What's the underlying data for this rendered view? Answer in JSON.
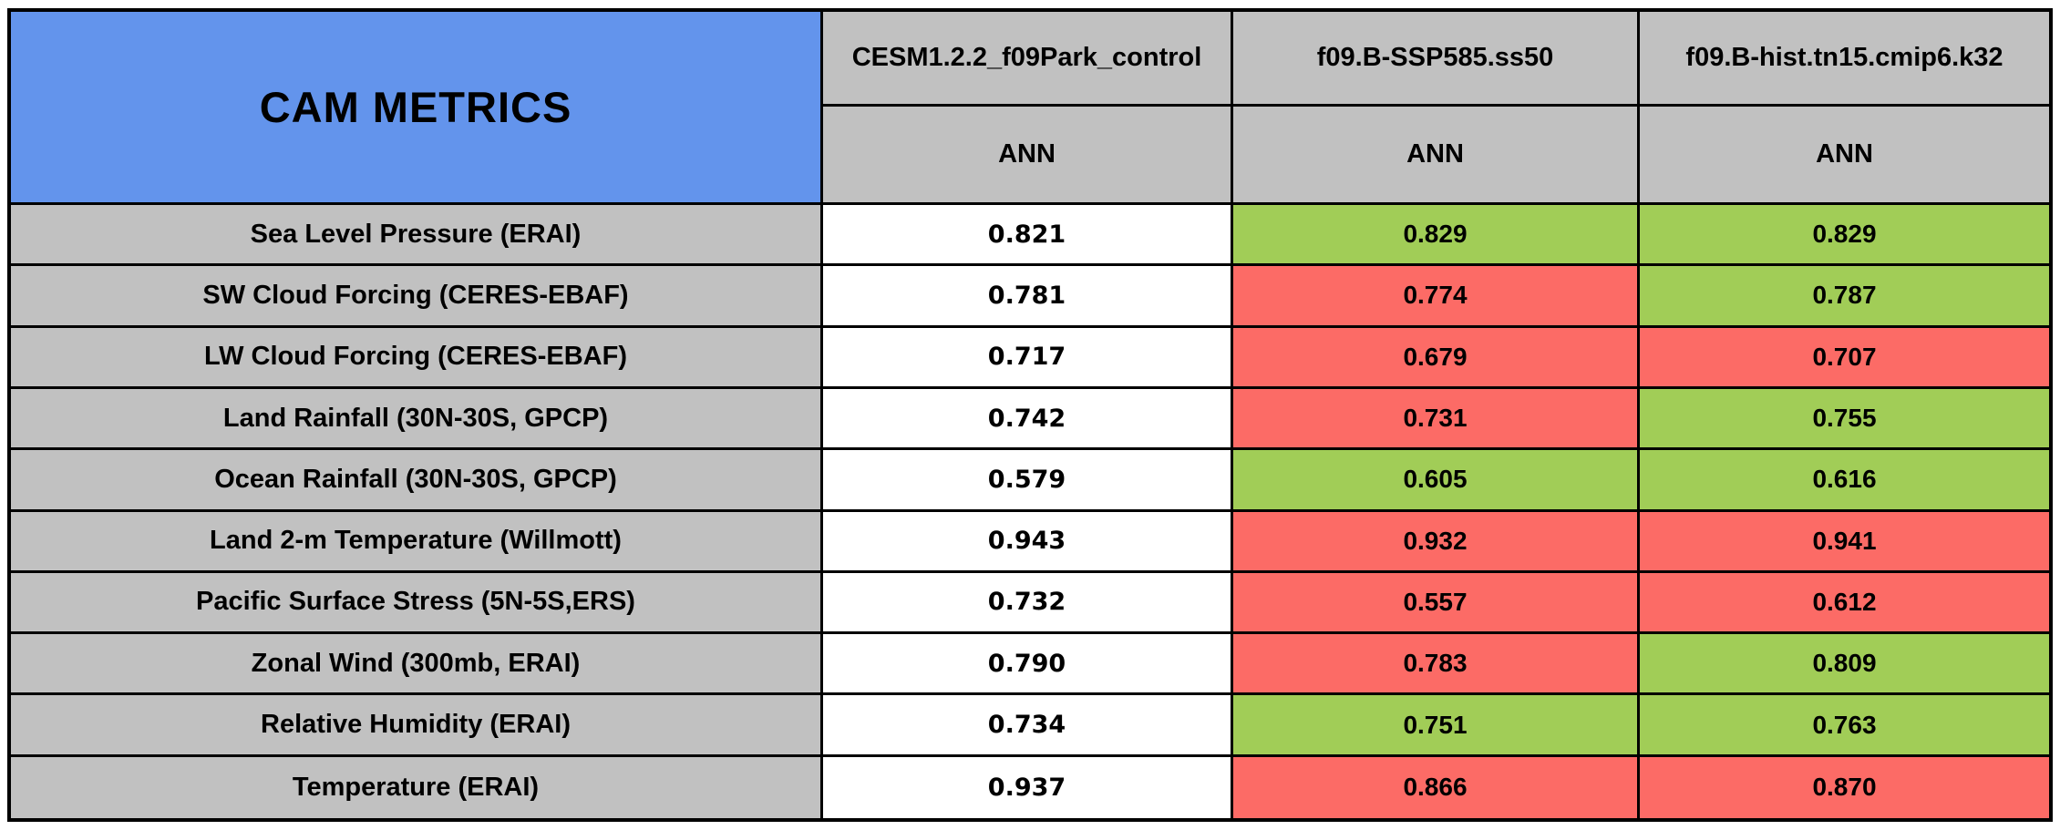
{
  "chart_data": {
    "type": "table",
    "title": "CAM METRICS",
    "columns": [
      "CESM1.2.2_f09Park_control",
      "f09.B-SSP585.ss50",
      "f09.B-hist.tn15.cmip6.k32"
    ],
    "subheaders": [
      "ANN",
      "ANN",
      "ANN"
    ],
    "rows": [
      {
        "metric": "Sea Level Pressure (ERAI)",
        "values": [
          "0.821",
          "0.829",
          "0.829"
        ],
        "cell_colors": [
          "white",
          "green",
          "green"
        ]
      },
      {
        "metric": "SW Cloud Forcing (CERES-EBAF)",
        "values": [
          "0.781",
          "0.774",
          "0.787"
        ],
        "cell_colors": [
          "white",
          "red",
          "green"
        ]
      },
      {
        "metric": "LW Cloud Forcing (CERES-EBAF)",
        "values": [
          "0.717",
          "0.679",
          "0.707"
        ],
        "cell_colors": [
          "white",
          "red",
          "red"
        ]
      },
      {
        "metric": "Land Rainfall (30N-30S, GPCP)",
        "values": [
          "0.742",
          "0.731",
          "0.755"
        ],
        "cell_colors": [
          "white",
          "red",
          "green"
        ]
      },
      {
        "metric": "Ocean Rainfall (30N-30S, GPCP)",
        "values": [
          "0.579",
          "0.605",
          "0.616"
        ],
        "cell_colors": [
          "white",
          "green",
          "green"
        ]
      },
      {
        "metric": "Land 2-m Temperature (Willmott)",
        "values": [
          "0.943",
          "0.932",
          "0.941"
        ],
        "cell_colors": [
          "white",
          "red",
          "red"
        ]
      },
      {
        "metric": "Pacific Surface Stress (5N-5S,ERS)",
        "values": [
          "0.732",
          "0.557",
          "0.612"
        ],
        "cell_colors": [
          "white",
          "red",
          "red"
        ]
      },
      {
        "metric": "Zonal Wind (300mb, ERAI)",
        "values": [
          "0.790",
          "0.783",
          "0.809"
        ],
        "cell_colors": [
          "white",
          "red",
          "green"
        ]
      },
      {
        "metric": "Relative Humidity (ERAI)",
        "values": [
          "0.734",
          "0.751",
          "0.763"
        ],
        "cell_colors": [
          "white",
          "green",
          "green"
        ]
      },
      {
        "metric": "Temperature (ERAI)",
        "values": [
          "0.937",
          "0.866",
          "0.870"
        ],
        "cell_colors": [
          "white",
          "red",
          "red"
        ]
      }
    ]
  },
  "colors": {
    "header_blue": "#6394EC",
    "label_gray": "#C1C1C1",
    "good_green": "#A1CD57",
    "bad_red": "#FC6B66",
    "neutral_white": "#FFFFFF",
    "border_black": "#000000"
  }
}
